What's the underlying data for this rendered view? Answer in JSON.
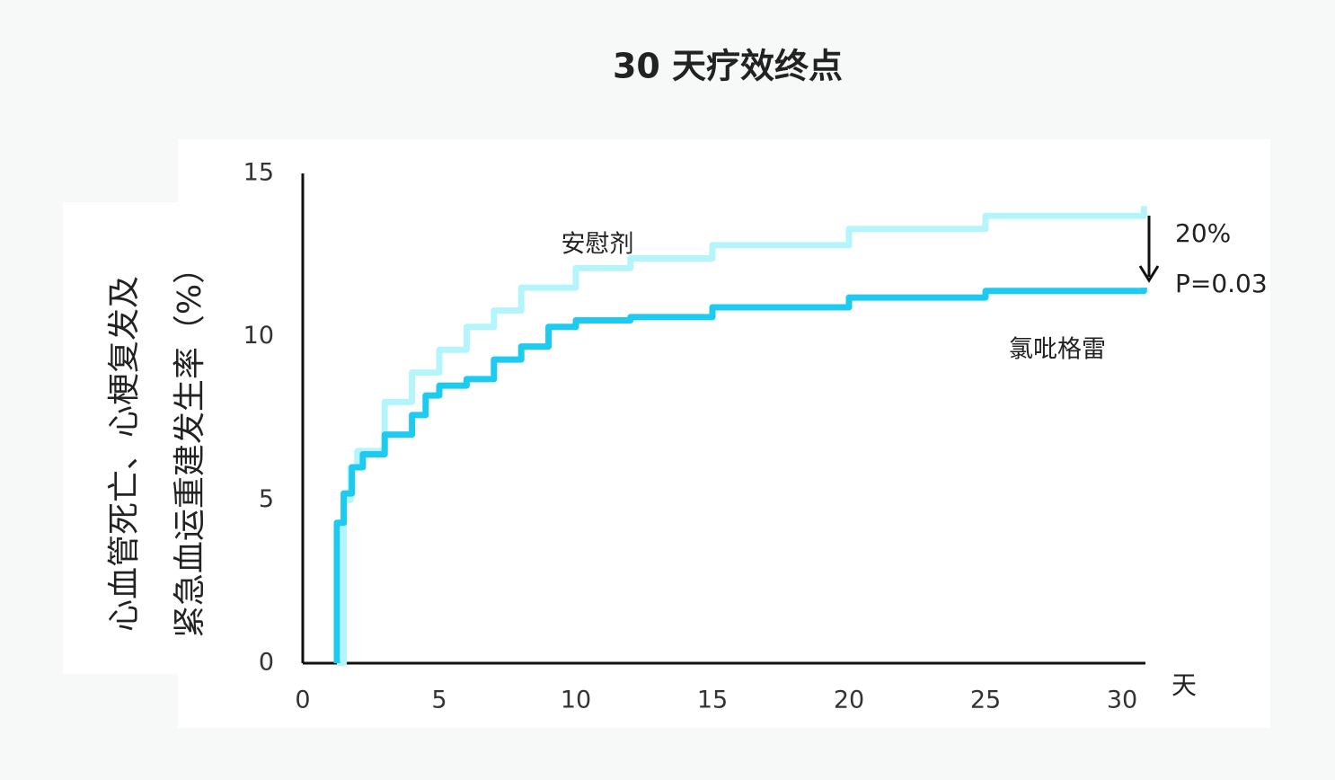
{
  "chart_data": {
    "type": "line",
    "title": "30 天疗效终点",
    "ylabel": [
      "心血管死亡、心梗复发及",
      "紧急血运重建发生率（%）"
    ],
    "xlabel": "天",
    "annotations": [
      "20%",
      "P=0.03"
    ],
    "xlim": [
      0,
      30
    ],
    "xticks": [
      0,
      5,
      10,
      15,
      20,
      25,
      30
    ],
    "ylim": [
      0,
      15
    ],
    "yticks": [
      0,
      5,
      10,
      15
    ],
    "series": [
      {
        "name": "安慰剂",
        "color": "#b4f5fb",
        "x": [
          1.25,
          1.5,
          1.75,
          2,
          3,
          4,
          5,
          6,
          7,
          8,
          10,
          12,
          15,
          20,
          25,
          30.8
        ],
        "values": [
          0,
          5.0,
          6.0,
          6.5,
          8.0,
          8.9,
          9.6,
          10.3,
          10.8,
          11.5,
          12.1,
          12.4,
          12.8,
          13.3,
          13.7,
          14.0
        ]
      },
      {
        "name": "氯吡格雷",
        "color": "#1ecbf0",
        "x": [
          1.25,
          1.25,
          1.5,
          1.8,
          2.2,
          3,
          4,
          4.5,
          5,
          6,
          7,
          8,
          9,
          10,
          12,
          15,
          20,
          25,
          30.8
        ],
        "values": [
          0,
          4.3,
          5.2,
          6.0,
          6.4,
          7.0,
          7.6,
          8.2,
          8.5,
          8.7,
          9.3,
          9.7,
          10.3,
          10.5,
          10.6,
          10.9,
          11.2,
          11.4,
          11.5
        ]
      }
    ]
  }
}
